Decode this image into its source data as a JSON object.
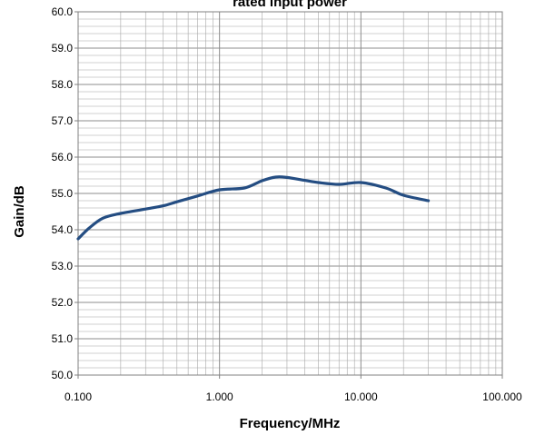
{
  "chart_data": {
    "type": "line",
    "title": "rated input power",
    "xlabel": "Frequency/MHz",
    "ylabel": "Gain/dB",
    "x_scale": "log",
    "xlim": [
      0.1,
      100
    ],
    "ylim": [
      50,
      60
    ],
    "x_ticks": [
      "0.100",
      "1.000",
      "10.000",
      "100.000"
    ],
    "y_ticks": [
      "50.0",
      "51.0",
      "52.0",
      "53.0",
      "54.0",
      "55.0",
      "56.0",
      "57.0",
      "58.0",
      "59.0",
      "60.0"
    ],
    "grid": true,
    "series": [
      {
        "x": [
          0.1,
          0.12,
          0.15,
          0.2,
          0.3,
          0.4,
          0.5,
          0.7,
          1.0,
          1.5,
          2.0,
          2.5,
          3.0,
          4.0,
          5.0,
          7.0,
          10.0,
          15.0,
          20.0,
          30.0
        ],
        "values": [
          53.75,
          54.05,
          54.32,
          54.45,
          54.57,
          54.66,
          54.77,
          54.93,
          55.1,
          55.15,
          55.35,
          55.45,
          55.44,
          55.36,
          55.3,
          55.25,
          55.3,
          55.15,
          54.95,
          54.8
        ]
      }
    ],
    "colors": {
      "line": "#244d82",
      "grid": "#a6a6a6",
      "frame": "#808080"
    }
  }
}
